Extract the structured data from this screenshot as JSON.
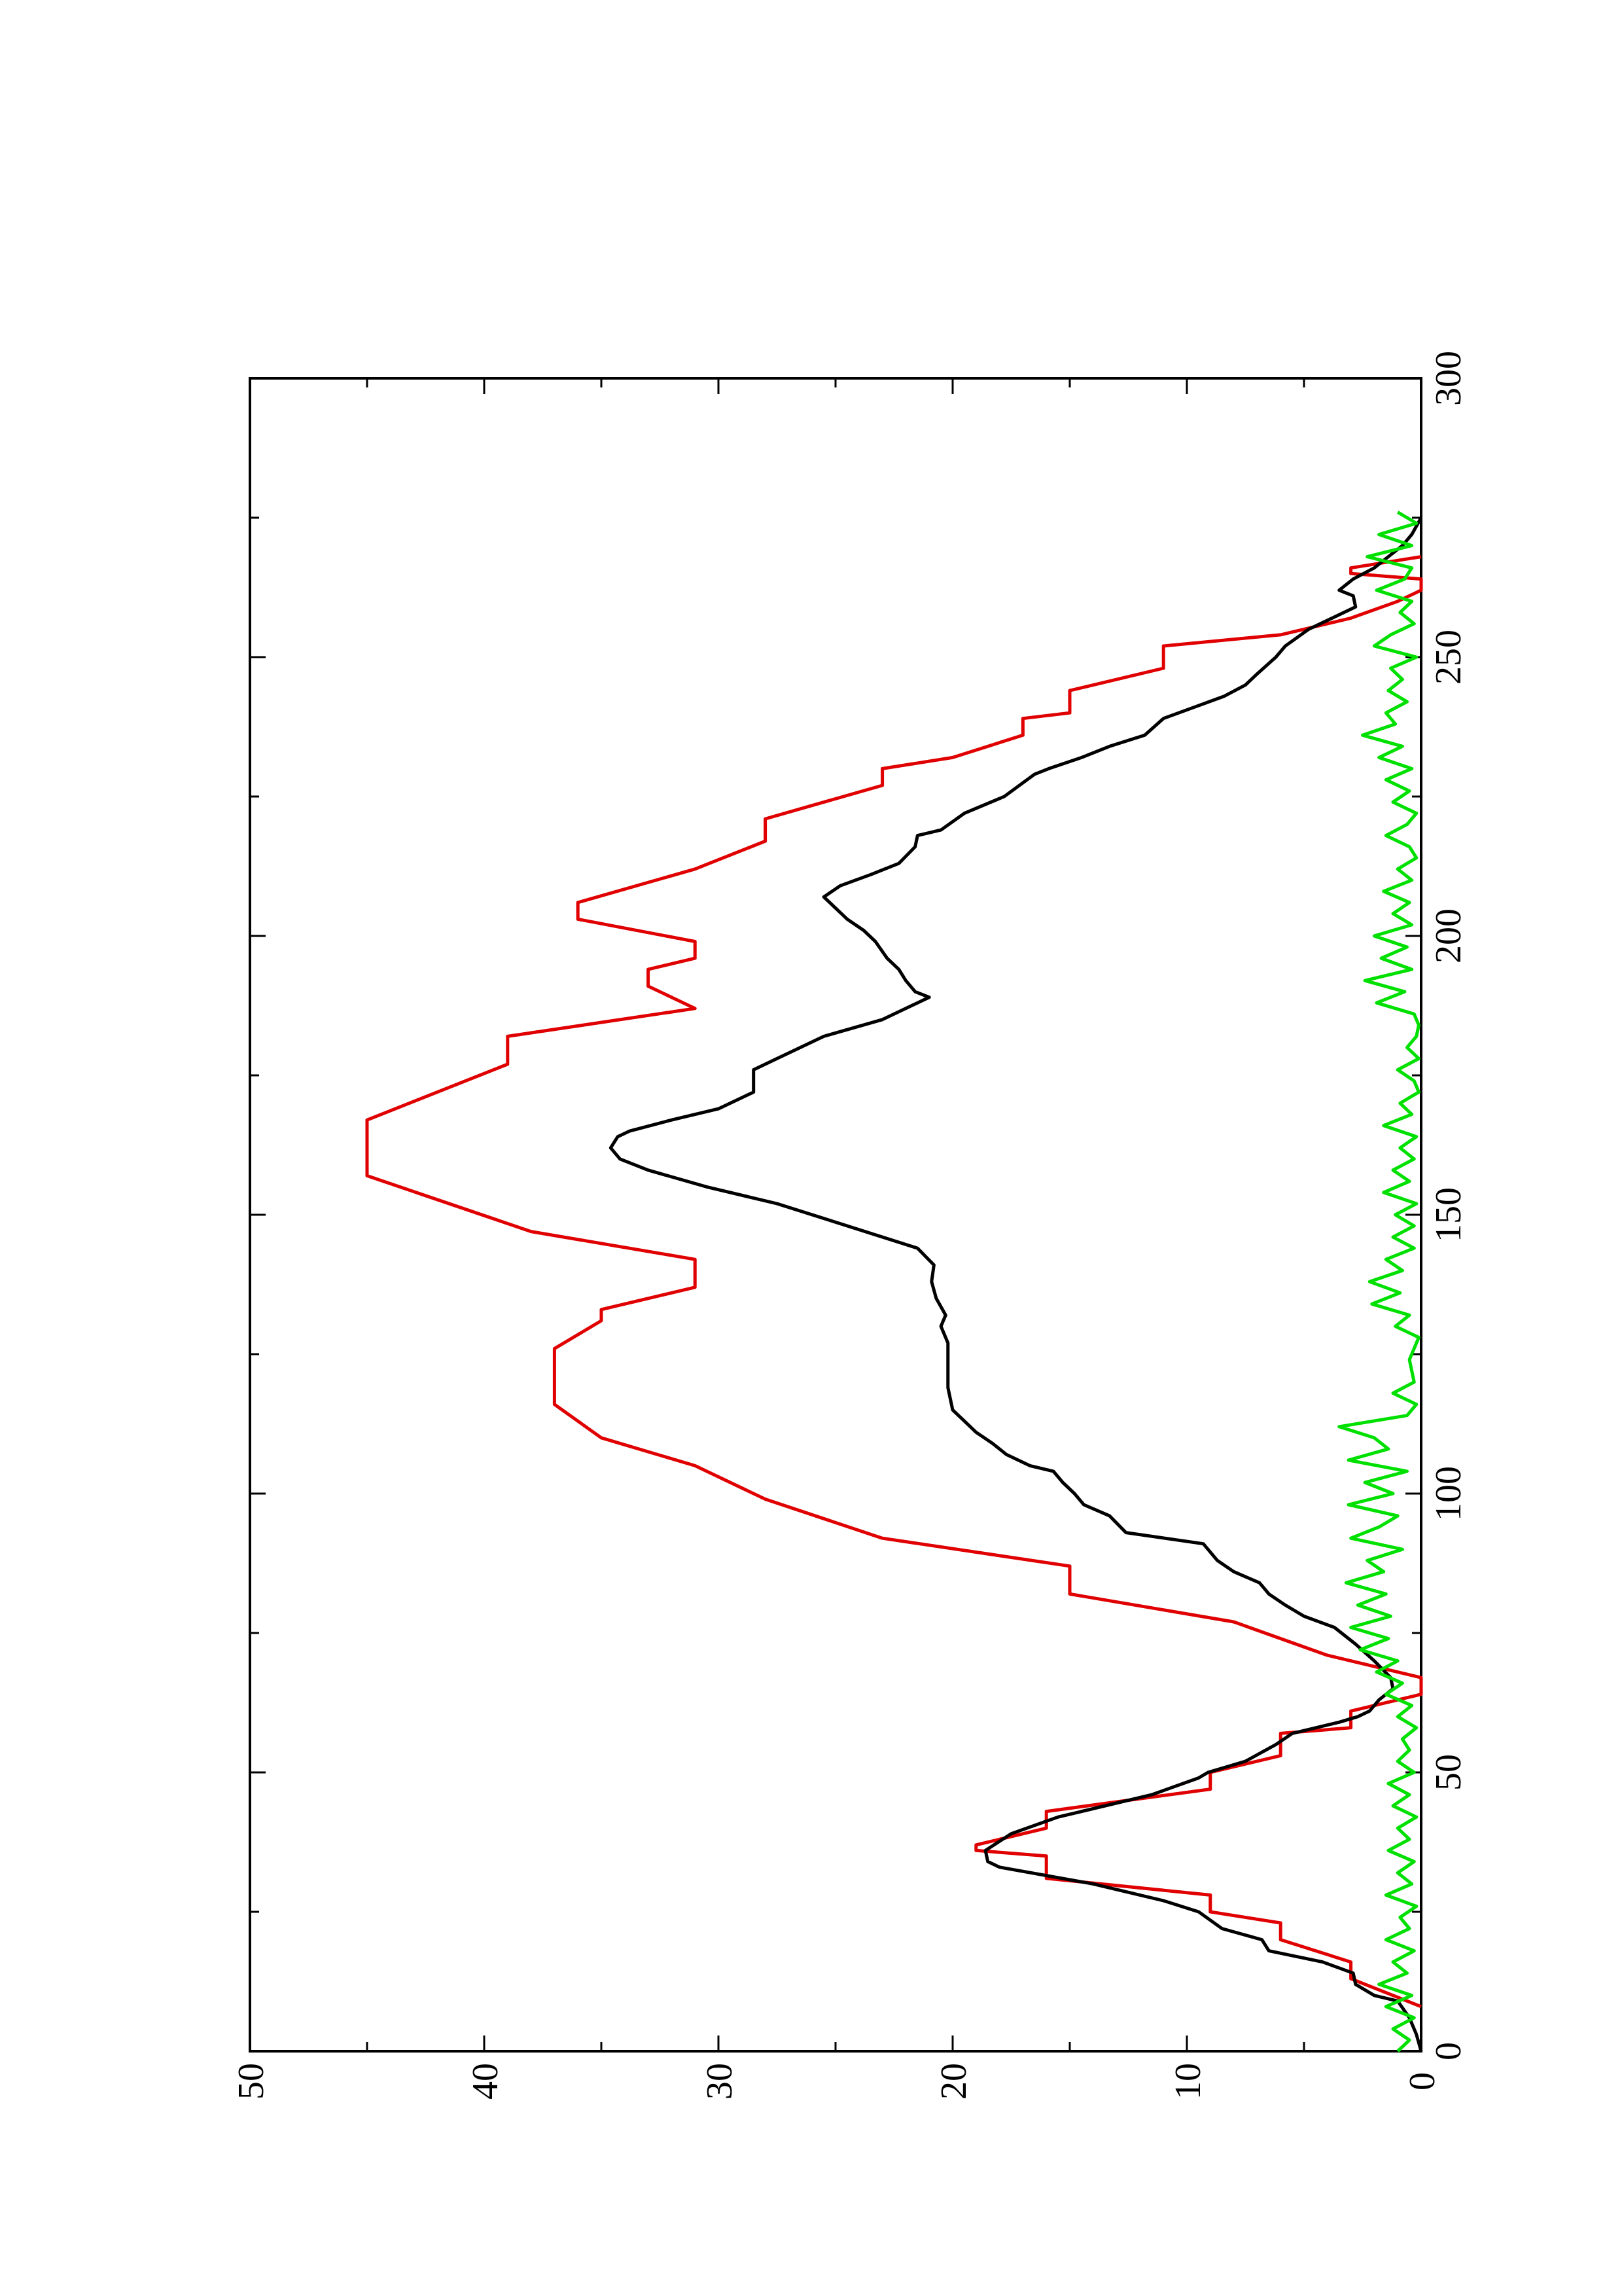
{
  "chart_data": {
    "type": "line",
    "title": "",
    "xlabel": "",
    "ylabel": "",
    "orientation": "rotated-90-ccw",
    "xlim": [
      0,
      300
    ],
    "ylim": [
      0,
      50
    ],
    "xticks": [
      0,
      50,
      100,
      150,
      200,
      250,
      300
    ],
    "yticks": [
      0,
      10,
      20,
      30,
      40,
      50
    ],
    "xtick_labels": [
      "0",
      "50",
      "100",
      "150",
      "200",
      "250",
      "300"
    ],
    "ytick_labels": [
      "0",
      "10",
      "20",
      "30",
      "40",
      "50"
    ],
    "grid": false,
    "legend": "none",
    "series": [
      {
        "color": "#e00000",
        "style": "stepped-linear",
        "points": [
          [
            8,
            0
          ],
          [
            13,
            3
          ],
          [
            16,
            3
          ],
          [
            20,
            6
          ],
          [
            23,
            6
          ],
          [
            25,
            9
          ],
          [
            28,
            9
          ],
          [
            31,
            16
          ],
          [
            35,
            16
          ],
          [
            36,
            19
          ],
          [
            37,
            19
          ],
          [
            40,
            16
          ],
          [
            43,
            16
          ],
          [
            47,
            9
          ],
          [
            50,
            9
          ],
          [
            53,
            6
          ],
          [
            57,
            6
          ],
          [
            58,
            3
          ],
          [
            61,
            3
          ],
          [
            64,
            0
          ],
          [
            67,
            0
          ],
          [
            71,
            4
          ],
          [
            77,
            8
          ],
          [
            82,
            15
          ],
          [
            87,
            15
          ],
          [
            92,
            23
          ],
          [
            99,
            28
          ],
          [
            105,
            31
          ],
          [
            110,
            35
          ],
          [
            116,
            37
          ],
          [
            126,
            37
          ],
          [
            131,
            35
          ],
          [
            133,
            35
          ],
          [
            137,
            31
          ],
          [
            142,
            31
          ],
          [
            147,
            38
          ],
          [
            157,
            45
          ],
          [
            167,
            45
          ],
          [
            172,
            42
          ],
          [
            177,
            39
          ],
          [
            182,
            39
          ],
          [
            187,
            31
          ],
          [
            191,
            33
          ],
          [
            194,
            33
          ],
          [
            196,
            31
          ],
          [
            199,
            31
          ],
          [
            203,
            36
          ],
          [
            206,
            36
          ],
          [
            212,
            31
          ],
          [
            217,
            28
          ],
          [
            221,
            28
          ],
          [
            227,
            23
          ],
          [
            230,
            23
          ],
          [
            232,
            20
          ],
          [
            236,
            17
          ],
          [
            239,
            17
          ],
          [
            240,
            15
          ],
          [
            244,
            15
          ],
          [
            248,
            11
          ],
          [
            252,
            11
          ],
          [
            254,
            6
          ],
          [
            257,
            3
          ],
          [
            260,
            1
          ],
          [
            262,
            0
          ],
          [
            264,
            0
          ],
          [
            265,
            3
          ],
          [
            266,
            3
          ],
          [
            268,
            0
          ]
        ]
      },
      {
        "color": "#000000",
        "style": "line",
        "points": [
          [
            0,
            0
          ],
          [
            3,
            0.2
          ],
          [
            6,
            0.5
          ],
          [
            9,
            1
          ],
          [
            10,
            2
          ],
          [
            12,
            2.8
          ],
          [
            14,
            2.9
          ],
          [
            16,
            4.2
          ],
          [
            18,
            6.5
          ],
          [
            20,
            6.8
          ],
          [
            22,
            8.5
          ],
          [
            25,
            9.5
          ],
          [
            27,
            11
          ],
          [
            30,
            14
          ],
          [
            33,
            18
          ],
          [
            34,
            18.5
          ],
          [
            36,
            18.6
          ],
          [
            39,
            17.5
          ],
          [
            42,
            15.5
          ],
          [
            46,
            11.5
          ],
          [
            49,
            9.5
          ],
          [
            50,
            9.1
          ],
          [
            52,
            7.5
          ],
          [
            55,
            6.2
          ],
          [
            57,
            5.5
          ],
          [
            59,
            3.5
          ],
          [
            60,
            2.7
          ],
          [
            61,
            2.2
          ],
          [
            63,
            1.8
          ],
          [
            65,
            1.2
          ],
          [
            67,
            1.3
          ],
          [
            70,
            2
          ],
          [
            73,
            2.8
          ],
          [
            76,
            3.7
          ],
          [
            78,
            5
          ],
          [
            80,
            5.8
          ],
          [
            82,
            6.5
          ],
          [
            84,
            6.9
          ],
          [
            86,
            8
          ],
          [
            88,
            8.7
          ],
          [
            91,
            9.3
          ],
          [
            93,
            12.6
          ],
          [
            96,
            13.3
          ],
          [
            98,
            14.4
          ],
          [
            100,
            14.8
          ],
          [
            102,
            15.3
          ],
          [
            104,
            15.7
          ],
          [
            105,
            16.7
          ],
          [
            107,
            17.7
          ],
          [
            109,
            18.3
          ],
          [
            111,
            19
          ],
          [
            113,
            19.5
          ],
          [
            115,
            20
          ],
          [
            117,
            20.1
          ],
          [
            119,
            20.2
          ],
          [
            124,
            20.2
          ],
          [
            127,
            20.2
          ],
          [
            130,
            20.5
          ],
          [
            132,
            20.3
          ],
          [
            135,
            20.7
          ],
          [
            138,
            20.9
          ],
          [
            141,
            20.8
          ],
          [
            144,
            21.5
          ],
          [
            148,
            24.5
          ],
          [
            152,
            27.5
          ],
          [
            155,
            30.5
          ],
          [
            158,
            33
          ],
          [
            160,
            34.2
          ],
          [
            162,
            34.6
          ],
          [
            164,
            34.3
          ],
          [
            165,
            33.8
          ],
          [
            167,
            32
          ],
          [
            169,
            30
          ],
          [
            172,
            28.5
          ],
          [
            176,
            28.5
          ],
          [
            178,
            27.5
          ],
          [
            182,
            25.5
          ],
          [
            185,
            23
          ],
          [
            188,
            21.5
          ],
          [
            189,
            21
          ],
          [
            190,
            21.6
          ],
          [
            192,
            22
          ],
          [
            194,
            22.3
          ],
          [
            196,
            22.8
          ],
          [
            199,
            23.3
          ],
          [
            201,
            23.8
          ],
          [
            203,
            24.5
          ],
          [
            205,
            25
          ],
          [
            207,
            25.5
          ],
          [
            209,
            24.8
          ],
          [
            211,
            23.5
          ],
          [
            213,
            22.3
          ],
          [
            216,
            21.6
          ],
          [
            218,
            21.5
          ],
          [
            219,
            20.5
          ],
          [
            222,
            19.5
          ],
          [
            225,
            17.8
          ],
          [
            229,
            16.5
          ],
          [
            230,
            15.9
          ],
          [
            232,
            14.5
          ],
          [
            234,
            13.3
          ],
          [
            236,
            11.8
          ],
          [
            239,
            11
          ],
          [
            241,
            9.7
          ],
          [
            243,
            8.4
          ],
          [
            245,
            7.5
          ],
          [
            247,
            7
          ],
          [
            250,
            6.2
          ],
          [
            252,
            5.8
          ],
          [
            255,
            4.8
          ],
          [
            257,
            3.8
          ],
          [
            259,
            2.8
          ],
          [
            261,
            2.9
          ],
          [
            262,
            3.5
          ],
          [
            264,
            2.9
          ],
          [
            266,
            2
          ],
          [
            268,
            1.4
          ],
          [
            270,
            0.8
          ],
          [
            272,
            0.4
          ],
          [
            275,
            0
          ]
        ]
      },
      {
        "color": "#00e000",
        "style": "noisy-line",
        "points": [
          [
            0,
            1
          ],
          [
            2,
            0.5
          ],
          [
            4,
            1.2
          ],
          [
            6,
            0.3
          ],
          [
            8,
            1.5
          ],
          [
            10,
            0.4
          ],
          [
            12,
            1.8
          ],
          [
            14,
            0.6
          ],
          [
            16,
            1.2
          ],
          [
            18,
            0.3
          ],
          [
            20,
            1.5
          ],
          [
            22,
            0.5
          ],
          [
            24,
            0.9
          ],
          [
            26,
            0.2
          ],
          [
            28,
            1.5
          ],
          [
            30,
            0.4
          ],
          [
            32,
            1.0
          ],
          [
            34,
            0.3
          ],
          [
            36,
            1.4
          ],
          [
            38,
            0.5
          ],
          [
            40,
            1.0
          ],
          [
            42,
            0.2
          ],
          [
            44,
            1.2
          ],
          [
            46,
            0.5
          ],
          [
            48,
            1.4
          ],
          [
            50,
            0.3
          ],
          [
            52,
            1.0
          ],
          [
            54,
            0.5
          ],
          [
            56,
            0.8
          ],
          [
            58,
            0.2
          ],
          [
            60,
            1.0
          ],
          [
            62,
            0.4
          ],
          [
            64,
            1.5
          ],
          [
            66,
            0.8
          ],
          [
            68,
            1.9
          ],
          [
            70,
            1.0
          ],
          [
            72,
            2.6
          ],
          [
            74,
            1.4
          ],
          [
            76,
            3.0
          ],
          [
            78,
            1.3
          ],
          [
            80,
            2.7
          ],
          [
            82,
            1.5
          ],
          [
            84,
            3.2
          ],
          [
            86,
            1.6
          ],
          [
            88,
            2.3
          ],
          [
            90,
            0.8
          ],
          [
            92,
            3.0
          ],
          [
            94,
            1.8
          ],
          [
            96,
            1.0
          ],
          [
            98,
            3.1
          ],
          [
            100,
            1.2
          ],
          [
            102,
            2.4
          ],
          [
            104,
            0.6
          ],
          [
            106,
            3.1
          ],
          [
            108,
            1.4
          ],
          [
            110,
            2.0
          ],
          [
            112,
            3.5
          ],
          [
            114,
            0.6
          ],
          [
            116,
            0.2
          ],
          [
            118,
            1.2
          ],
          [
            120,
            0.3
          ],
          [
            124,
            0.5
          ],
          [
            128,
            0.1
          ],
          [
            130,
            1.1
          ],
          [
            132,
            0.5
          ],
          [
            134,
            2.1
          ],
          [
            136,
            0.9
          ],
          [
            138,
            2.2
          ],
          [
            140,
            0.8
          ],
          [
            142,
            1.5
          ],
          [
            144,
            0.3
          ],
          [
            146,
            1.2
          ],
          [
            148,
            0.3
          ],
          [
            150,
            1.1
          ],
          [
            152,
            0.2
          ],
          [
            154,
            1.6
          ],
          [
            156,
            0.5
          ],
          [
            158,
            1.2
          ],
          [
            160,
            0.3
          ],
          [
            162,
            0.9
          ],
          [
            164,
            0.2
          ],
          [
            166,
            1.6
          ],
          [
            168,
            0.4
          ],
          [
            170,
            0.9
          ],
          [
            172,
            0.1
          ],
          [
            174,
            0.3
          ],
          [
            176,
            1.0
          ],
          [
            178,
            0.1
          ],
          [
            180,
            0.6
          ],
          [
            182,
            0.2
          ],
          [
            184,
            0.1
          ],
          [
            186,
            0.3
          ],
          [
            188,
            1.9
          ],
          [
            190,
            0.7
          ],
          [
            192,
            2.4
          ],
          [
            194,
            0.4
          ],
          [
            196,
            1.7
          ],
          [
            198,
            0.6
          ],
          [
            200,
            2.0
          ],
          [
            202,
            0.4
          ],
          [
            204,
            1.2
          ],
          [
            206,
            0.5
          ],
          [
            208,
            1.6
          ],
          [
            210,
            0.4
          ],
          [
            212,
            1.0
          ],
          [
            214,
            0.2
          ],
          [
            216,
            0.5
          ],
          [
            218,
            1.5
          ],
          [
            220,
            0.6
          ],
          [
            222,
            0.2
          ],
          [
            224,
            1.2
          ],
          [
            226,
            0.5
          ],
          [
            228,
            1.5
          ],
          [
            230,
            0.4
          ],
          [
            232,
            1.8
          ],
          [
            234,
            0.8
          ],
          [
            236,
            2.5
          ],
          [
            238,
            1.1
          ],
          [
            240,
            1.5
          ],
          [
            242,
            0.6
          ],
          [
            244,
            1.4
          ],
          [
            246,
            0.8
          ],
          [
            248,
            1.3
          ],
          [
            250,
            0.2
          ],
          [
            252,
            2.0
          ],
          [
            254,
            1.3
          ],
          [
            256,
            0.3
          ],
          [
            258,
            0.9
          ],
          [
            260,
            0.4
          ],
          [
            262,
            1.9
          ],
          [
            264,
            0.7
          ],
          [
            266,
            0.4
          ],
          [
            268,
            2.3
          ],
          [
            270,
            0.4
          ],
          [
            272,
            1.8
          ],
          [
            274,
            0.2
          ],
          [
            276,
            1.0
          ]
        ]
      }
    ]
  }
}
